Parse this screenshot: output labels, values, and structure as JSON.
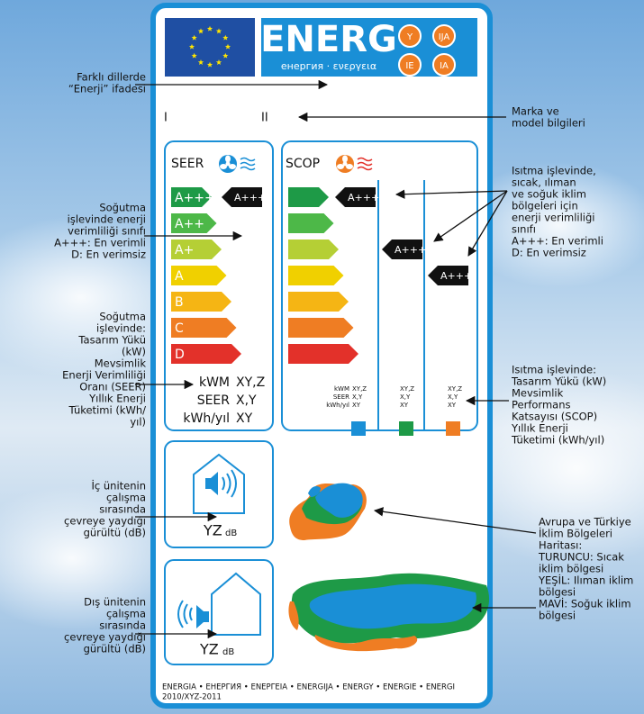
{
  "label": {
    "header": {
      "energ": "ENERG",
      "energ_sub": "енергия · ενεργεια",
      "badges": [
        "Y",
        "IJA",
        "IE",
        "IA"
      ]
    },
    "model_marks": [
      "I",
      "II"
    ],
    "seer": {
      "title": "SEER",
      "classes": [
        "A+++",
        "A++",
        "A+",
        "A",
        "B",
        "C",
        "D"
      ],
      "indicator": "A+++",
      "specs": [
        [
          "kWM",
          "XY,Z"
        ],
        [
          "SEER",
          "X,Y"
        ],
        [
          "kWh/yıl",
          "XY"
        ]
      ]
    },
    "scop": {
      "title": "SCOP",
      "indicators": [
        "A+++",
        "A+++",
        "A+++"
      ],
      "spec_labels": [
        "kWM",
        "SEER",
        "kWh/yıl"
      ],
      "spec_columns": [
        [
          "XY,Z",
          "X,Y",
          "XY"
        ],
        [
          "XY,Z",
          "X,Y",
          "XY"
        ],
        [
          "XY,Z",
          "X,Y",
          "XY"
        ]
      ]
    },
    "noise": {
      "indoor": {
        "value": "YZ",
        "unit": "dB"
      },
      "outdoor": {
        "value": "YZ",
        "unit": "dB"
      }
    },
    "footer": {
      "languages": "ENERGIA • ЕНЕРГИЯ • ΕΝΕΡΓΕΙΑ • ENERGIJA • ENERGY • ENERGIE • ENERGI",
      "regulation": "2010/XYZ-2011"
    }
  },
  "annotations": {
    "left": [
      {
        "lines": [
          "Farklı dillerde",
          "“Enerji” ifadesi"
        ]
      },
      {
        "lines": [
          "Soğutma",
          "işlevinde enerji",
          "verimliliği sınıfı",
          "A+++: En verimli",
          "D: En verimsiz"
        ]
      },
      {
        "lines": [
          "Soğutma",
          "işlevinde:",
          "Tasarım Yükü",
          "(kW)",
          "Mevsimlik",
          "Enerji Verimliliği",
          "Oranı (SEER)",
          "Yıllık Enerji",
          "Tüketimi (kWh/",
          "yıl)"
        ]
      },
      {
        "lines": [
          "İç ünitenin",
          "çalışma",
          "sırasında",
          "çevreye yaydığı",
          "gürültü (dB)"
        ]
      },
      {
        "lines": [
          "Dış ünitenin",
          "çalışma",
          "sırasında",
          "çevreye yaydığı",
          "gürültü (dB)"
        ]
      }
    ],
    "right": [
      {
        "lines": [
          "Marka ve",
          "model bilgileri"
        ]
      },
      {
        "lines": [
          "Isıtma işlevinde,",
          "sıcak, ılıman",
          "ve soğuk iklim",
          "bölgeleri için",
          "enerji verimliliği",
          "sınıfı",
          "A+++: En verimli",
          "D: En verimsiz"
        ]
      },
      {
        "lines": [
          "Isıtma işlevinde:",
          "Tasarım Yükü (kW)",
          "Mevsimlik",
          "Performans",
          "Katsayısı (SCOP)",
          "Yıllık Enerji",
          "Tüketimi (kWh/yıl)"
        ]
      },
      {
        "lines": [
          "Avrupa ve Türkiye",
          "İklim Bölgeleri",
          "Haritası:",
          "TURUNCU: Sıcak",
          "iklim bölgesi",
          "YEŞİL: Ilıman iklim",
          "bölgesi",
          "MAVİ: Soğuk iklim",
          "bölgesi"
        ]
      }
    ]
  }
}
